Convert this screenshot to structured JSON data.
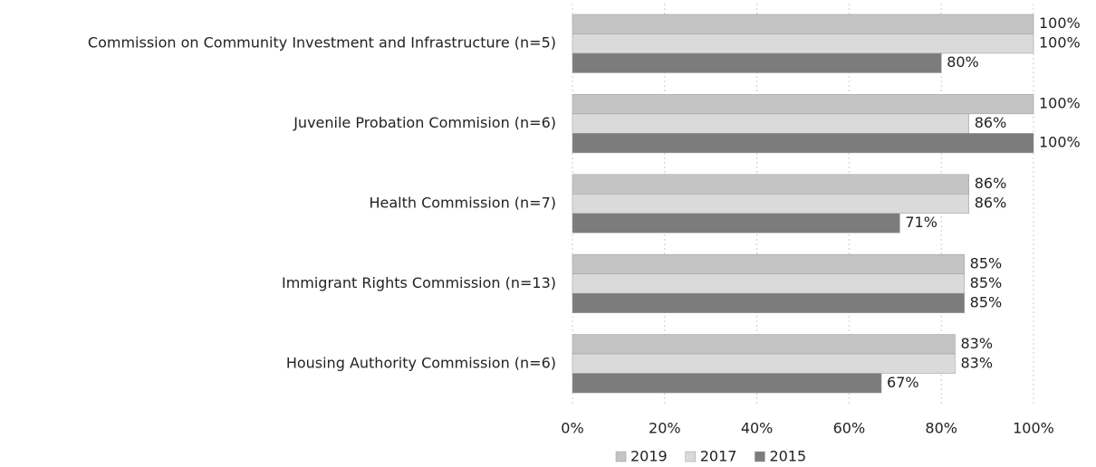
{
  "chart_data": {
    "type": "hbar",
    "categories": [
      "Commission on Community Investment and Infrastructure (n=5)",
      "Juvenile Probation Commision (n=6)",
      "Health Commission (n=7)",
      "Immigrant Rights Commission (n=13)",
      "Housing Authority Commission (n=6)"
    ],
    "series": [
      {
        "name": "2019",
        "color": "#c4c4c4",
        "values": [
          100,
          100,
          86,
          85,
          83
        ],
        "value_labels": [
          "100%",
          "100%",
          "86%",
          "85%",
          "83%"
        ]
      },
      {
        "name": "2017",
        "color": "#dadada",
        "values": [
          100,
          86,
          86,
          85,
          83
        ],
        "value_labels": [
          "100%",
          "86%",
          "86%",
          "85%",
          "83%"
        ]
      },
      {
        "name": "2015",
        "color": "#7c7c7c",
        "values": [
          80,
          100,
          71,
          85,
          67
        ],
        "value_labels": [
          "80%",
          "100%",
          "71%",
          "85%",
          "67%"
        ]
      }
    ],
    "xlim": [
      0,
      100
    ],
    "xticks": [
      {
        "value": 0,
        "label": "0%"
      },
      {
        "value": 20,
        "label": "20%"
      },
      {
        "value": 40,
        "label": "40%"
      },
      {
        "value": 60,
        "label": "60%"
      },
      {
        "value": 80,
        "label": "80%"
      },
      {
        "value": 100,
        "label": "100%"
      }
    ],
    "grid": true,
    "legend": "bottom"
  }
}
